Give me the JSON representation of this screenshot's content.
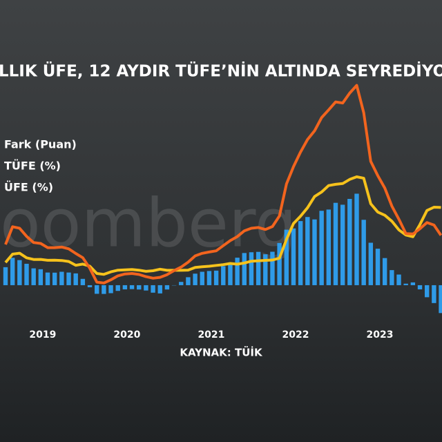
{
  "chart_data": {
    "type": "line",
    "title": "LLIK ÜFE, 12 AYDIR TÜFE’NİN ALTINDA SEYREDİYO",
    "watermark": "oomberg",
    "source": "KAYNAK: TÜİK",
    "categories": [
      null,
      null,
      null,
      null,
      null,
      "2019",
      null,
      null,
      null,
      null,
      null,
      null,
      null,
      null,
      null,
      null,
      null,
      "2020",
      null,
      null,
      null,
      null,
      null,
      null,
      null,
      null,
      null,
      null,
      null,
      "2021",
      null,
      null,
      null,
      null,
      null,
      null,
      null,
      null,
      null,
      null,
      null,
      "2022",
      null,
      null,
      null,
      null,
      null,
      null,
      null,
      null,
      null,
      null,
      null,
      "2023",
      null,
      null,
      null,
      null,
      null,
      null,
      null,
      null,
      null
    ],
    "ylim": [
      -30,
      170
    ],
    "series": [
      {
        "name": "Fark (Puan)",
        "type": "bar",
        "color": "#2f9be8",
        "values": [
          14.2,
          21.6,
          19.8,
          16.9,
          13.3,
          12.6,
          10.0,
          9.9,
          10.6,
          10.0,
          9.3,
          5.0,
          -1.6,
          -6.8,
          -6.9,
          -6.3,
          -4.5,
          -3.3,
          -3.1,
          -3.4,
          -4.2,
          -5.9,
          -6.5,
          -3.4,
          -0.2,
          2.6,
          6.3,
          9.1,
          10.6,
          11.2,
          11.5,
          15.0,
          18.0,
          21.7,
          25.4,
          26.0,
          26.3,
          24.4,
          26.4,
          33.3,
          43.8,
          44.8,
          50.6,
          53.8,
          51.9,
          58.7,
          59.7,
          65.0,
          63.5,
          68.1,
          72.2,
          51.6,
          33.5,
          28.8,
          21.4,
          11.9,
          8.4,
          1.2,
          2.2,
          -3.3,
          -9.5,
          -14.1,
          -22.0
        ]
      },
      {
        "name": "TÜFE (%)",
        "type": "line",
        "color": "#f6c21c",
        "values": [
          17.9,
          24.52,
          25.24,
          21.62,
          20.3,
          20.35,
          19.67,
          19.71,
          19.5,
          18.71,
          15.72,
          16.65,
          15.01,
          9.26,
          8.55,
          10.56,
          11.84,
          12.15,
          12.37,
          11.86,
          10.94,
          11.39,
          12.62,
          11.76,
          11.77,
          11.75,
          11.89,
          14.03,
          14.6,
          14.97,
          15.61,
          16.19,
          17.14,
          16.59,
          17.53,
          18.95,
          19.25,
          19.58,
          19.89,
          21.31,
          36.08,
          48.69,
          54.44,
          61.14,
          69.97,
          73.5,
          78.62,
          79.6,
          80.21,
          83.45,
          85.51,
          84.39,
          64.27,
          57.68,
          55.18,
          50.51,
          43.68,
          39.59,
          38.21,
          47.83,
          58.94,
          61.53,
          61.36
        ]
      },
      {
        "name": "ÜFE (%)",
        "type": "line",
        "color": "#f2641e",
        "values": [
          32.13,
          46.15,
          45.01,
          38.54,
          33.64,
          32.93,
          29.64,
          29.64,
          30.12,
          28.71,
          25.04,
          21.66,
          13.45,
          2.45,
          1.7,
          4.26,
          7.36,
          8.84,
          9.26,
          8.5,
          6.71,
          5.53,
          6.17,
          8.33,
          11.53,
          14.33,
          18.2,
          23.11,
          25.15,
          26.16,
          27.09,
          31.2,
          35.17,
          38.33,
          42.89,
          44.92,
          45.52,
          43.96,
          46.31,
          54.62,
          79.89,
          93.53,
          105.01,
          114.97,
          121.82,
          132.16,
          138.31,
          144.61,
          143.75,
          151.5,
          157.69,
          136.02,
          97.72,
          86.46,
          76.61,
          62.43,
          52.11,
          40.76,
          40.42,
          44.5,
          49.41,
          47.44,
          39.39
        ]
      }
    ]
  }
}
